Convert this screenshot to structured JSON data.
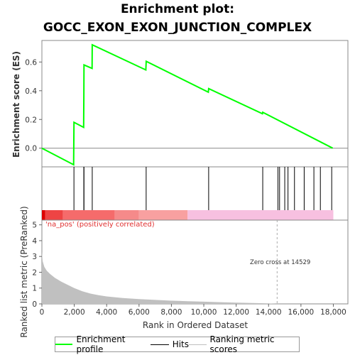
{
  "title_line1": "Enrichment plot:",
  "title_line2": "GOCC_EXON_EXON_JUNCTION_COMPLEX",
  "chart_data": {
    "type": "line",
    "es_panel": {
      "ylabel": "Enrichment score (ES)",
      "ylim": [
        -0.13,
        0.75
      ],
      "yticks": [
        0.0,
        0.2,
        0.4,
        0.6
      ],
      "ytick_labels": [
        "0.0",
        "0.2",
        "0.4",
        "0.6"
      ],
      "series": [
        {
          "name": "Enrichment profile",
          "color": "#00ff00",
          "x": [
            0,
            1960,
            1980,
            2580,
            2590,
            2600,
            3100,
            3110,
            6420,
            6440,
            10280,
            10300,
            13620,
            13640,
            17960
          ],
          "y": [
            0.0,
            -0.115,
            0.18,
            0.145,
            0.36,
            0.58,
            0.555,
            0.72,
            0.545,
            0.605,
            0.39,
            0.415,
            0.24,
            0.25,
            0.0
          ]
        }
      ]
    },
    "hits": {
      "name": "Hits",
      "color": "#000000",
      "x": [
        1980,
        2590,
        2600,
        3110,
        6440,
        10300,
        13640,
        14580,
        14680,
        15000,
        15200,
        15600,
        16200,
        16800,
        17200,
        17900
      ]
    },
    "color_bar": {
      "segments": [
        {
          "from": 0,
          "to": 200,
          "color": "#dd0000"
        },
        {
          "from": 200,
          "to": 1300,
          "color": "#ee4444"
        },
        {
          "from": 1300,
          "to": 4500,
          "color": "#f56b6b"
        },
        {
          "from": 4500,
          "to": 6000,
          "color": "#f58a8a"
        },
        {
          "from": 6000,
          "to": 9000,
          "color": "#f8a0a0"
        },
        {
          "from": 9000,
          "to": 18000,
          "color": "#f7c0e0"
        }
      ]
    },
    "metric_panel": {
      "ylabel": "Ranked list metric (PreRanked)",
      "ylim": [
        0,
        5.3
      ],
      "yticks": [
        0,
        1,
        2,
        3,
        4,
        5
      ],
      "ytick_labels": [
        "0",
        "1",
        "2",
        "3",
        "4",
        "5"
      ],
      "series_name": "Ranking metric scores",
      "fill_color": "#c0c0c0",
      "x": [
        0,
        50,
        150,
        300,
        500,
        800,
        1200,
        1600,
        2000,
        2500,
        3000,
        3500,
        4000,
        5000,
        6000,
        7000,
        8000,
        9000,
        10000,
        11000,
        12000,
        13000,
        14000,
        14529
      ],
      "y": [
        3.3,
        2.7,
        2.35,
        2.1,
        1.9,
        1.65,
        1.4,
        1.2,
        1.0,
        0.8,
        0.65,
        0.55,
        0.47,
        0.37,
        0.3,
        0.25,
        0.2,
        0.17,
        0.14,
        0.11,
        0.08,
        0.06,
        0.03,
        0.0
      ],
      "positive_label": "'na_pos' (positively correlated)",
      "zero_cross_label": "Zero cross at 14529",
      "zero_cross_x": 14529
    },
    "xlabel": "Rank in Ordered Dataset",
    "xlim": [
      0,
      18900
    ],
    "xticks": [
      0,
      2000,
      4000,
      6000,
      8000,
      10000,
      12000,
      14000,
      16000,
      18000
    ],
    "xtick_labels": [
      "0",
      "2,000",
      "4,000",
      "6,000",
      "8,000",
      "10,000",
      "12,000",
      "14,000",
      "16,000",
      "18,000"
    ]
  },
  "legend": {
    "items": [
      {
        "label": "Enrichment profile",
        "color": "#00ff00"
      },
      {
        "label": "Hits",
        "color": "#000000"
      },
      {
        "label": "Ranking metric scores",
        "color": "#c0c0c0"
      }
    ]
  }
}
